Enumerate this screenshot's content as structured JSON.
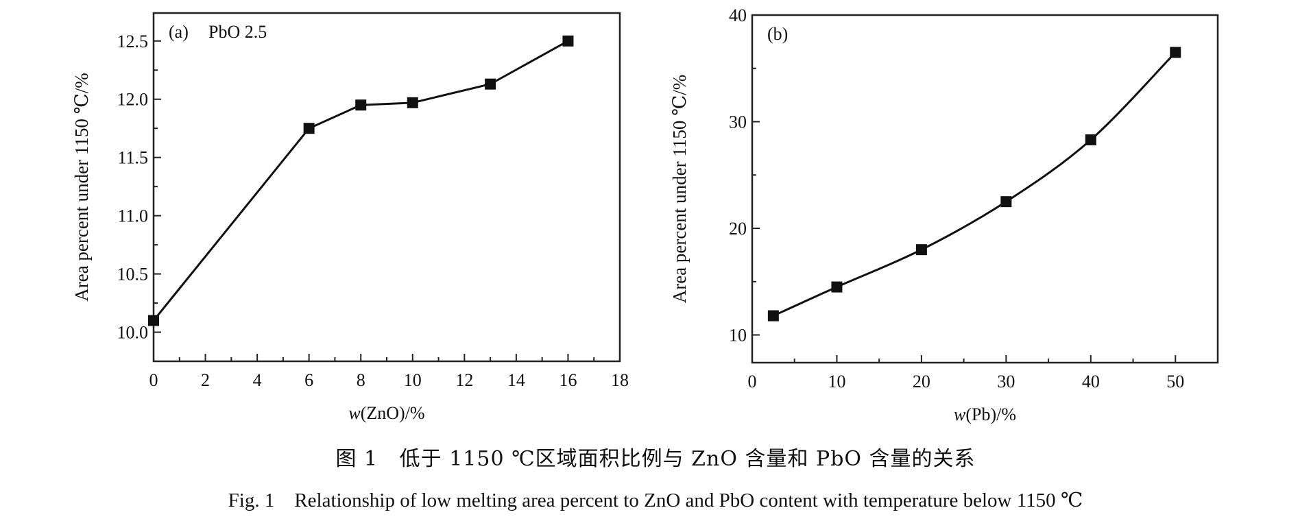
{
  "chart_data": [
    {
      "type": "line",
      "panel_label": "(a)",
      "annotation": "PbO 2.5",
      "xlabel_italic": "w",
      "xlabel_rest": "(ZnO)/%",
      "ylabel": "Area percent under 1150 ℃/%",
      "x": [
        0,
        6,
        8,
        10,
        13,
        16
      ],
      "y": [
        10.1,
        11.75,
        11.95,
        11.97,
        12.13,
        12.5
      ],
      "xlim": [
        0,
        18
      ],
      "ylim": [
        9.75,
        12.74
      ],
      "xticks": [
        0,
        2,
        4,
        6,
        8,
        10,
        12,
        14,
        16,
        18
      ],
      "xtick_labels": [
        "0",
        "2",
        "4",
        "6",
        "8",
        "10",
        "12",
        "14",
        "16",
        "18"
      ],
      "yticks": [
        10.0,
        10.5,
        11.0,
        11.5,
        12.0,
        12.5
      ],
      "ytick_labels": [
        "10.0",
        "10.5",
        "11.0",
        "11.5",
        "12.0",
        "12.5"
      ],
      "x_minor_step": 1,
      "y_minor_step": 0.25,
      "marker": "square",
      "grid": false
    },
    {
      "type": "line",
      "panel_label": "(b)",
      "annotation": "",
      "xlabel_italic": "w",
      "xlabel_rest": "(Pb)/%",
      "ylabel": "Area percent under 1150 ℃/%",
      "x": [
        2.5,
        10,
        20,
        30,
        40,
        50
      ],
      "y": [
        11.8,
        14.5,
        18.0,
        22.5,
        28.3,
        36.5
      ],
      "xlim": [
        0,
        55
      ],
      "ylim": [
        7.4,
        40
      ],
      "xticks": [
        0,
        10,
        20,
        30,
        40,
        50
      ],
      "xtick_labels": [
        "0",
        "10",
        "20",
        "30",
        "40",
        "50"
      ],
      "yticks": [
        10,
        20,
        30,
        40
      ],
      "ytick_labels": [
        "10",
        "20",
        "30",
        "40"
      ],
      "x_minor_step": 5,
      "y_minor_step": 5,
      "marker": "square",
      "smooth": true,
      "grid": false
    }
  ],
  "caption": {
    "zh": "图 1   低于 1150 ℃区域面积比例与 ZnO 含量和 PbO 含量的关系",
    "en": "Fig. 1    Relationship of low melting area percent to ZnO and PbO content with temperature below 1150 ℃"
  }
}
